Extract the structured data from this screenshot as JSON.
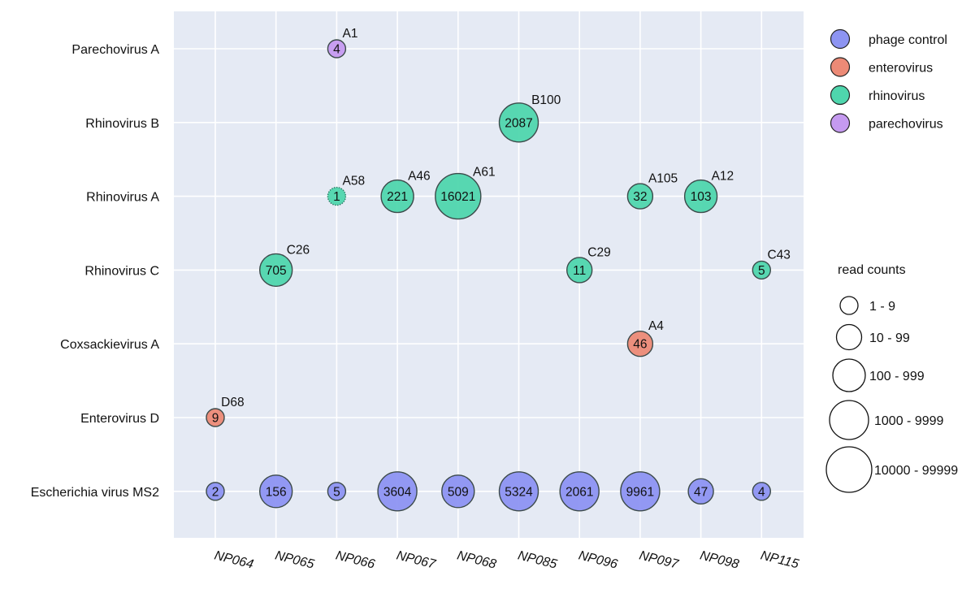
{
  "chart_data": {
    "type": "scatter",
    "title": "",
    "xlabel": "",
    "ylabel": "",
    "categories_x": [
      "NP064",
      "NP065",
      "NP066",
      "NP067",
      "NP068",
      "NP085",
      "NP096",
      "NP097",
      "NP098",
      "NP115"
    ],
    "categories_y": [
      "Parechovirus A",
      "Rhinovirus B",
      "Rhinovirus A",
      "Rhinovirus C",
      "Coxsackievirus A",
      "Enterovirus D",
      "Escherichia virus MS2"
    ],
    "groups": [
      {
        "name": "phage control",
        "color": "#8d94f2"
      },
      {
        "name": "enterovirus",
        "color": "#ec8a76"
      },
      {
        "name": "rhinovirus",
        "color": "#4fd6ad"
      },
      {
        "name": "parechovirus",
        "color": "#c59af0"
      }
    ],
    "points": [
      {
        "x": "NP066",
        "y": "Parechovirus A",
        "reads": 4,
        "label": "4",
        "subtype": "A1",
        "group": "parechovirus"
      },
      {
        "x": "NP085",
        "y": "Rhinovirus B",
        "reads": 2087,
        "label": "2087",
        "subtype": "B100",
        "group": "rhinovirus"
      },
      {
        "x": "NP066",
        "y": "Rhinovirus A",
        "reads": 1,
        "label": "1",
        "subtype": "A58",
        "group": "rhinovirus",
        "dotted": true
      },
      {
        "x": "NP067",
        "y": "Rhinovirus A",
        "reads": 221,
        "label": "221",
        "subtype": "A46",
        "group": "rhinovirus"
      },
      {
        "x": "NP068",
        "y": "Rhinovirus A",
        "reads": 16021,
        "label": "16021",
        "subtype": "A61",
        "group": "rhinovirus"
      },
      {
        "x": "NP097",
        "y": "Rhinovirus A",
        "reads": 32,
        "label": "32",
        "subtype": "A105",
        "group": "rhinovirus"
      },
      {
        "x": "NP098",
        "y": "Rhinovirus A",
        "reads": 103,
        "label": "103",
        "subtype": "A12",
        "group": "rhinovirus"
      },
      {
        "x": "NP065",
        "y": "Rhinovirus C",
        "reads": 705,
        "label": "705",
        "subtype": "C26",
        "group": "rhinovirus"
      },
      {
        "x": "NP096",
        "y": "Rhinovirus C",
        "reads": 11,
        "label": "11",
        "subtype": "C29",
        "group": "rhinovirus"
      },
      {
        "x": "NP115",
        "y": "Rhinovirus C",
        "reads": 5,
        "label": "5",
        "subtype": "C43",
        "group": "rhinovirus"
      },
      {
        "x": "NP097",
        "y": "Coxsackievirus A",
        "reads": 46,
        "label": "46",
        "subtype": "A4",
        "group": "enterovirus"
      },
      {
        "x": "NP064",
        "y": "Enterovirus D",
        "reads": 9,
        "label": "9",
        "subtype": "D68",
        "group": "enterovirus"
      },
      {
        "x": "NP064",
        "y": "Escherichia virus MS2",
        "reads": 2,
        "label": "2",
        "subtype": "",
        "group": "phage control"
      },
      {
        "x": "NP065",
        "y": "Escherichia virus MS2",
        "reads": 156,
        "label": "156",
        "subtype": "",
        "group": "phage control"
      },
      {
        "x": "NP066",
        "y": "Escherichia virus MS2",
        "reads": 5,
        "label": "5",
        "subtype": "",
        "group": "phage control"
      },
      {
        "x": "NP067",
        "y": "Escherichia virus MS2",
        "reads": 3604,
        "label": "3604",
        "subtype": "",
        "group": "phage control"
      },
      {
        "x": "NP068",
        "y": "Escherichia virus MS2",
        "reads": 509,
        "label": "509",
        "subtype": "",
        "group": "phage control"
      },
      {
        "x": "NP085",
        "y": "Escherichia virus MS2",
        "reads": 5324,
        "label": "5324",
        "subtype": "",
        "group": "phage control"
      },
      {
        "x": "NP096",
        "y": "Escherichia virus MS2",
        "reads": 2061,
        "label": "2061",
        "subtype": "",
        "group": "phage control"
      },
      {
        "x": "NP097",
        "y": "Escherichia virus MS2",
        "reads": 9961,
        "label": "9961",
        "subtype": "",
        "group": "phage control"
      },
      {
        "x": "NP098",
        "y": "Escherichia virus MS2",
        "reads": 47,
        "label": "47",
        "subtype": "",
        "group": "phage control"
      },
      {
        "x": "NP115",
        "y": "Escherichia virus MS2",
        "reads": 4,
        "label": "4",
        "subtype": "",
        "group": "phage control"
      }
    ],
    "size_legend": {
      "title": "read counts",
      "bins": [
        "1 - 9",
        "10 - 99",
        "100 - 999",
        "1000 - 9999",
        "10000 - 99999"
      ]
    },
    "grid": true,
    "legend_placement": "right",
    "background_color": "#e5eaf4",
    "grid_color": "#ffffff"
  }
}
